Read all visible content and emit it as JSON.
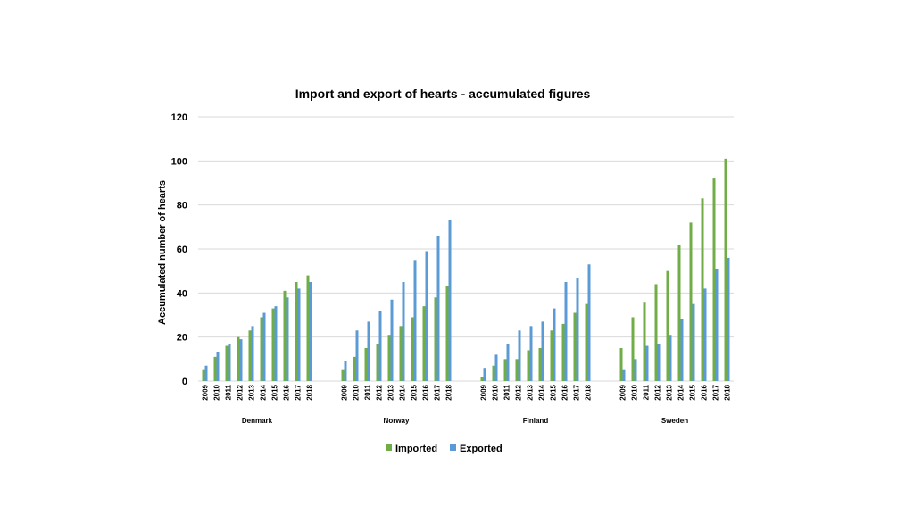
{
  "chart_data": {
    "type": "bar",
    "title": "Import and export of hearts - accumulated figures",
    "xlabel": "",
    "ylabel": "Accumulated number of hearts",
    "ylim": [
      0,
      120
    ],
    "yticks": [
      0,
      20,
      40,
      60,
      80,
      100,
      120
    ],
    "grid": true,
    "legend_position": "bottom",
    "years": [
      "2009",
      "2010",
      "2011",
      "2012",
      "2013",
      "2014",
      "2015",
      "2016",
      "2017",
      "2018"
    ],
    "groups": [
      {
        "name": "Denmark",
        "series": [
          {
            "name": "Imported",
            "values": [
              5,
              11,
              16,
              20,
              23,
              29,
              33,
              41,
              45,
              48
            ]
          },
          {
            "name": "Exported",
            "values": [
              7,
              13,
              17,
              19,
              25,
              31,
              34,
              38,
              42,
              45
            ]
          }
        ]
      },
      {
        "name": "Norway",
        "series": [
          {
            "name": "Imported",
            "values": [
              5,
              11,
              15,
              17,
              21,
              25,
              29,
              34,
              38,
              43
            ]
          },
          {
            "name": "Exported",
            "values": [
              9,
              23,
              27,
              32,
              37,
              45,
              55,
              59,
              66,
              73
            ]
          }
        ]
      },
      {
        "name": "Finland",
        "series": [
          {
            "name": "Imported",
            "values": [
              2,
              7,
              10,
              10,
              14,
              15,
              23,
              26,
              31,
              35
            ]
          },
          {
            "name": "Exported",
            "values": [
              6,
              12,
              17,
              23,
              25,
              27,
              33,
              45,
              47,
              53
            ]
          }
        ]
      },
      {
        "name": "Sweden",
        "series": [
          {
            "name": "Imported",
            "values": [
              15,
              29,
              36,
              44,
              50,
              62,
              72,
              83,
              92,
              101
            ]
          },
          {
            "name": "Exported",
            "values": [
              5,
              10,
              16,
              17,
              21,
              28,
              35,
              42,
              51,
              56
            ]
          }
        ]
      }
    ],
    "legend": [
      {
        "name": "Imported",
        "color": "#70ad47"
      },
      {
        "name": "Exported",
        "color": "#5b9bd5"
      }
    ]
  }
}
